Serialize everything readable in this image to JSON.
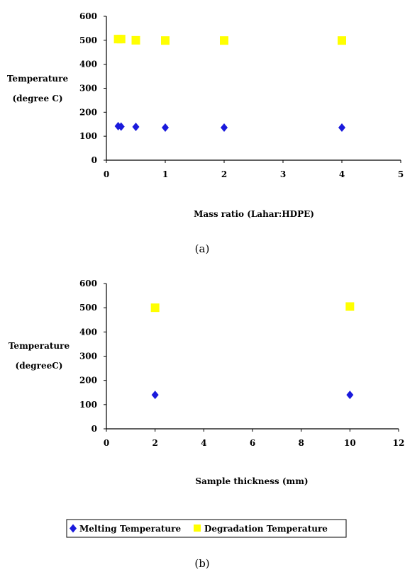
{
  "chart_data": [
    {
      "type": "scatter",
      "title": "",
      "xlabel": "Mass ratio (Lahar:HDPE)",
      "ylabel_lines": [
        "Temperature",
        "(degree C)"
      ],
      "xlim": [
        0,
        5
      ],
      "ylim": [
        0,
        600
      ],
      "xticks": [
        0,
        1,
        2,
        3,
        4,
        5
      ],
      "yticks": [
        0,
        100,
        200,
        300,
        400,
        500,
        600
      ],
      "grid": false,
      "series": [
        {
          "name": "Melting Temperature",
          "marker": "diamond",
          "color": "#1a1adc",
          "x": [
            0.2,
            0.25,
            0.5,
            1,
            2,
            4
          ],
          "y": [
            142,
            140,
            139,
            136,
            136,
            136
          ]
        },
        {
          "name": "Degradation Temperature",
          "marker": "square",
          "color": "#ffff00",
          "x": [
            0.2,
            0.25,
            0.5,
            1,
            2,
            4
          ],
          "y": [
            505,
            505,
            500,
            499,
            499,
            499
          ]
        }
      ],
      "caption": "(a)"
    },
    {
      "type": "scatter",
      "title": "",
      "xlabel": "Sample thickness (mm)",
      "ylabel_lines": [
        "Temperature",
        "(degreeC)"
      ],
      "xlim": [
        0,
        12
      ],
      "ylim": [
        0,
        600
      ],
      "xticks": [
        0,
        2,
        4,
        6,
        8,
        10,
        12
      ],
      "yticks": [
        0,
        100,
        200,
        300,
        400,
        500,
        600
      ],
      "grid": false,
      "series": [
        {
          "name": "Melting Temperature",
          "marker": "diamond",
          "color": "#1a1adc",
          "x": [
            2,
            10
          ],
          "y": [
            140,
            140
          ]
        },
        {
          "name": "Degradation Temperature",
          "marker": "square",
          "color": "#ffff00",
          "x": [
            2,
            10
          ],
          "y": [
            500,
            505
          ]
        }
      ],
      "caption": "(b)"
    }
  ],
  "legend": {
    "position": "bottom",
    "items": [
      {
        "label": "Melting Temperature",
        "marker": "diamond",
        "color": "#1a1adc"
      },
      {
        "label": "Degradation Temperature",
        "marker": "square",
        "color": "#ffff00"
      }
    ]
  }
}
